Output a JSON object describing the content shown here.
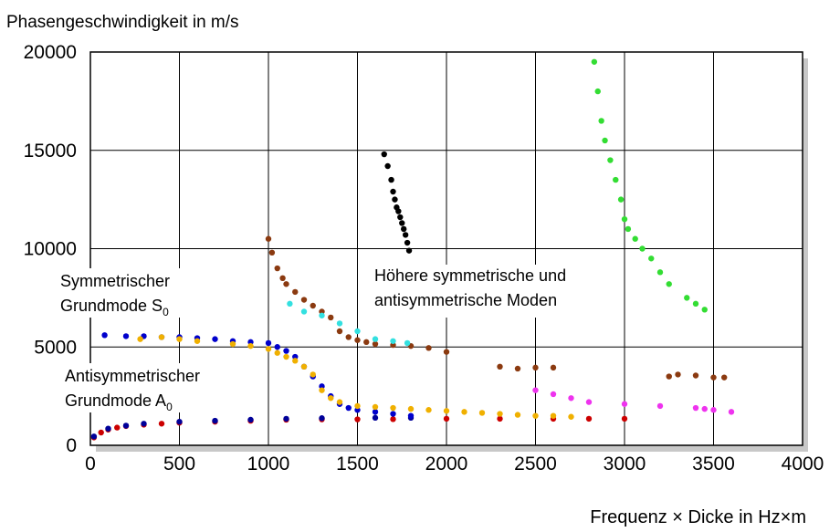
{
  "chart_data": {
    "type": "scatter",
    "ylabel": "Phasengeschwindigkeit in m/s",
    "xlabel": "Frequenz × Dicke in Hz×m",
    "xlim": [
      0,
      4000
    ],
    "ylim": [
      0,
      20000
    ],
    "x_ticks": [
      "0",
      "500",
      "1000",
      "1500",
      "2000",
      "2500",
      "3000",
      "3500",
      "4000"
    ],
    "y_ticks": [
      "0",
      "5000",
      "10000",
      "15000",
      "20000"
    ],
    "grid": true,
    "annotations": [
      {
        "id": "s0",
        "lines": [
          "Symmetrischer",
          "Grundmode S",
          "0"
        ]
      },
      {
        "id": "a0",
        "lines": [
          "Antisymmetrischer",
          "Grundmode A",
          "0"
        ]
      },
      {
        "id": "higher",
        "lines": [
          "Höhere symmetrische und",
          "antisymmetrische Moden"
        ]
      }
    ],
    "series": [
      {
        "color": "#cc0000",
        "points": [
          [
            20,
            400
          ],
          [
            60,
            650
          ],
          [
            100,
            800
          ],
          [
            150,
            900
          ],
          [
            200,
            980
          ],
          [
            300,
            1050
          ],
          [
            400,
            1100
          ],
          [
            500,
            1150
          ],
          [
            700,
            1200
          ],
          [
            900,
            1250
          ],
          [
            1100,
            1300
          ],
          [
            1300,
            1320
          ],
          [
            1500,
            1320
          ],
          [
            1700,
            1330
          ],
          [
            2000,
            1350
          ],
          [
            2300,
            1350
          ],
          [
            2600,
            1350
          ],
          [
            2800,
            1350
          ],
          [
            3000,
            1350
          ]
        ]
      },
      {
        "color": "#000099",
        "points": [
          [
            20,
            450
          ],
          [
            100,
            850
          ],
          [
            200,
            1000
          ],
          [
            300,
            1100
          ],
          [
            500,
            1200
          ],
          [
            700,
            1250
          ],
          [
            900,
            1300
          ],
          [
            1100,
            1350
          ],
          [
            1300,
            1380
          ],
          [
            1600,
            1400
          ],
          [
            1800,
            1400
          ]
        ]
      },
      {
        "color": "#0000cc",
        "points": [
          [
            80,
            5600
          ],
          [
            200,
            5550
          ],
          [
            300,
            5550
          ],
          [
            400,
            5500
          ],
          [
            500,
            5500
          ],
          [
            600,
            5450
          ],
          [
            700,
            5400
          ],
          [
            800,
            5300
          ],
          [
            900,
            5250
          ],
          [
            1000,
            5200
          ],
          [
            1050,
            5000
          ],
          [
            1100,
            4800
          ],
          [
            1150,
            4500
          ],
          [
            1200,
            4000
          ],
          [
            1250,
            3500
          ],
          [
            1300,
            3000
          ],
          [
            1350,
            2500
          ],
          [
            1400,
            2100
          ],
          [
            1450,
            1900
          ],
          [
            1500,
            1800
          ],
          [
            1600,
            1700
          ],
          [
            1700,
            1600
          ],
          [
            1800,
            1500
          ]
        ]
      },
      {
        "color": "#f0b000",
        "points": [
          [
            280,
            5400
          ],
          [
            400,
            5500
          ],
          [
            500,
            5400
          ],
          [
            600,
            5300
          ],
          [
            800,
            5150
          ],
          [
            900,
            5050
          ],
          [
            1000,
            4900
          ],
          [
            1050,
            4700
          ],
          [
            1100,
            4500
          ],
          [
            1150,
            4300
          ],
          [
            1200,
            4000
          ],
          [
            1250,
            3600
          ],
          [
            1300,
            2800
          ],
          [
            1350,
            2400
          ],
          [
            1400,
            2200
          ],
          [
            1500,
            2000
          ],
          [
            1600,
            1950
          ],
          [
            1700,
            1900
          ],
          [
            1800,
            1850
          ],
          [
            1900,
            1800
          ],
          [
            2000,
            1750
          ],
          [
            2100,
            1700
          ],
          [
            2200,
            1650
          ],
          [
            2300,
            1600
          ],
          [
            2400,
            1550
          ],
          [
            2500,
            1500
          ],
          [
            2600,
            1500
          ],
          [
            2700,
            1450
          ]
        ]
      },
      {
        "color": "#8b3a10",
        "points": [
          [
            1000,
            10500
          ],
          [
            1020,
            9800
          ],
          [
            1050,
            9000
          ],
          [
            1080,
            8500
          ],
          [
            1100,
            8200
          ],
          [
            1150,
            7800
          ],
          [
            1200,
            7400
          ],
          [
            1250,
            7100
          ],
          [
            1300,
            6800
          ],
          [
            1350,
            6500
          ],
          [
            1400,
            5800
          ],
          [
            1450,
            5500
          ],
          [
            1500,
            5350
          ],
          [
            1550,
            5250
          ],
          [
            1600,
            5150
          ],
          [
            1700,
            5100
          ],
          [
            1800,
            5050
          ],
          [
            1900,
            4950
          ],
          [
            2000,
            4750
          ],
          [
            2300,
            4000
          ],
          [
            2400,
            3900
          ],
          [
            2500,
            3950
          ],
          [
            2600,
            3950
          ],
          [
            3250,
            3500
          ],
          [
            3300,
            3600
          ],
          [
            3400,
            3550
          ],
          [
            3500,
            3450
          ],
          [
            3560,
            3450
          ]
        ]
      },
      {
        "color": "#33e0e0",
        "points": [
          [
            1120,
            7200
          ],
          [
            1200,
            6800
          ],
          [
            1300,
            6600
          ],
          [
            1400,
            6200
          ],
          [
            1500,
            5800
          ],
          [
            1600,
            5400
          ],
          [
            1700,
            5300
          ],
          [
            1780,
            5200
          ]
        ]
      },
      {
        "color": "#000000",
        "points": [
          [
            1650,
            14800
          ],
          [
            1670,
            14200
          ],
          [
            1690,
            13500
          ],
          [
            1700,
            12900
          ],
          [
            1710,
            12500
          ],
          [
            1720,
            12100
          ],
          [
            1730,
            11900
          ],
          [
            1740,
            11600
          ],
          [
            1750,
            11300
          ],
          [
            1760,
            11000
          ],
          [
            1770,
            10700
          ],
          [
            1780,
            10300
          ],
          [
            1790,
            9900
          ]
        ]
      },
      {
        "color": "#33dd33",
        "points": [
          [
            2830,
            19500
          ],
          [
            2850,
            18000
          ],
          [
            2870,
            16500
          ],
          [
            2890,
            15500
          ],
          [
            2920,
            14500
          ],
          [
            2950,
            13500
          ],
          [
            2980,
            12500
          ],
          [
            3000,
            11500
          ],
          [
            3020,
            11000
          ],
          [
            3060,
            10500
          ],
          [
            3100,
            10000
          ],
          [
            3150,
            9500
          ],
          [
            3200,
            8800
          ],
          [
            3250,
            8200
          ],
          [
            3350,
            7500
          ],
          [
            3400,
            7200
          ],
          [
            3450,
            6900
          ]
        ]
      },
      {
        "color": "#ee33ee",
        "points": [
          [
            2500,
            2800
          ],
          [
            2600,
            2600
          ],
          [
            2700,
            2400
          ],
          [
            2800,
            2200
          ],
          [
            3000,
            2100
          ],
          [
            3200,
            2000
          ],
          [
            3400,
            1900
          ],
          [
            3450,
            1850
          ],
          [
            3500,
            1800
          ],
          [
            3600,
            1700
          ]
        ]
      }
    ]
  }
}
